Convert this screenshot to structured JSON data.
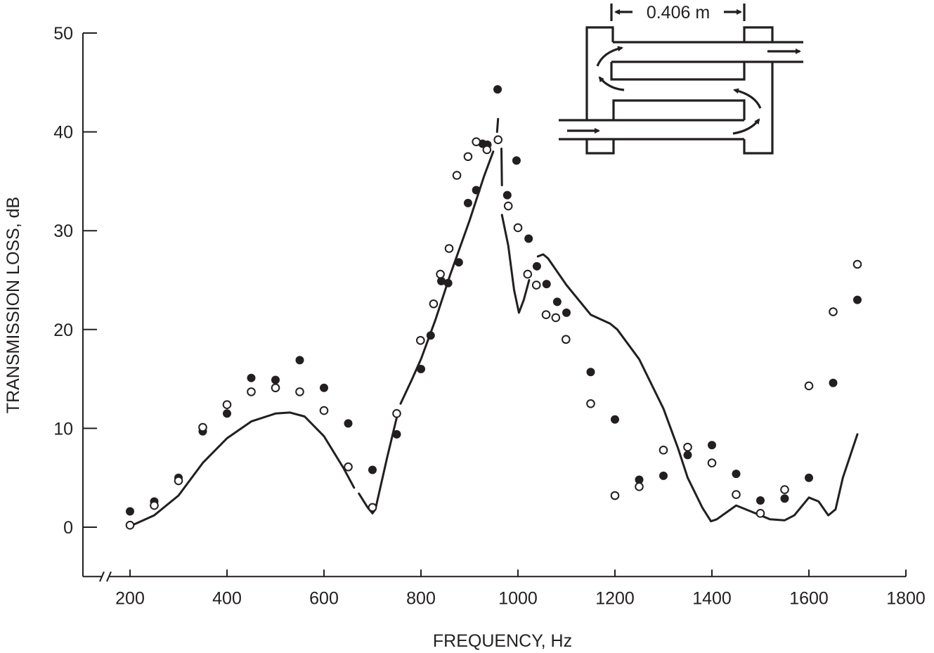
{
  "chart_data": {
    "type": "scatter",
    "title": "",
    "xlabel": "FREQUENCY, Hz",
    "ylabel": "TRANSMISSION LOSS, dB",
    "xlim": [
      200,
      1800
    ],
    "ylim": [
      -5,
      50
    ],
    "x_axis_break": true,
    "grid": false,
    "xticks": [
      200,
      400,
      600,
      800,
      1000,
      1200,
      1400,
      1600,
      1800
    ],
    "yticks": [
      0,
      10,
      20,
      30,
      40,
      50
    ],
    "series": [
      {
        "marker": "filled-circle",
        "color": "#231f20",
        "points": [
          [
            200,
            1.6
          ],
          [
            250,
            2.6
          ],
          [
            300,
            5.0
          ],
          [
            350,
            9.7
          ],
          [
            400,
            11.5
          ],
          [
            450,
            15.1
          ],
          [
            500,
            14.9
          ],
          [
            550,
            16.9
          ],
          [
            600,
            14.1
          ],
          [
            650,
            10.5
          ],
          [
            700,
            5.8
          ],
          [
            750,
            9.4
          ],
          [
            800,
            16.0
          ],
          [
            820,
            19.4
          ],
          [
            842,
            24.9
          ],
          [
            856,
            24.7
          ],
          [
            878,
            26.8
          ],
          [
            897,
            32.8
          ],
          [
            914,
            34.1
          ],
          [
            927,
            38.8
          ],
          [
            937,
            38.7
          ],
          [
            958,
            44.3
          ],
          [
            978,
            33.6
          ],
          [
            997,
            37.1
          ],
          [
            1022,
            29.2
          ],
          [
            1039,
            26.4
          ],
          [
            1059,
            24.6
          ],
          [
            1081,
            22.8
          ],
          [
            1100,
            21.7
          ],
          [
            1150,
            15.7
          ],
          [
            1200,
            10.9
          ],
          [
            1250,
            4.8
          ],
          [
            1300,
            5.2
          ],
          [
            1350,
            7.3
          ],
          [
            1400,
            8.3
          ],
          [
            1450,
            5.4
          ],
          [
            1500,
            2.7
          ],
          [
            1550,
            2.9
          ],
          [
            1600,
            5.0
          ],
          [
            1650,
            14.6
          ],
          [
            1700,
            23.0
          ]
        ]
      },
      {
        "marker": "open-circle",
        "color": "#231f20",
        "points": [
          [
            200,
            0.2
          ],
          [
            250,
            2.2
          ],
          [
            300,
            4.7
          ],
          [
            350,
            10.1
          ],
          [
            400,
            12.4
          ],
          [
            450,
            13.7
          ],
          [
            500,
            14.1
          ],
          [
            550,
            13.7
          ],
          [
            600,
            11.8
          ],
          [
            650,
            6.1
          ],
          [
            700,
            2.0
          ],
          [
            750,
            11.5
          ],
          [
            799,
            18.9
          ],
          [
            826,
            22.6
          ],
          [
            840,
            25.6
          ],
          [
            858,
            28.2
          ],
          [
            874,
            35.6
          ],
          [
            897,
            37.5
          ],
          [
            914,
            39.0
          ],
          [
            936,
            38.2
          ],
          [
            959,
            39.2
          ],
          [
            980,
            32.5
          ],
          [
            1000,
            30.3
          ],
          [
            1020,
            25.6
          ],
          [
            1038,
            24.5
          ],
          [
            1058,
            21.5
          ],
          [
            1078,
            21.2
          ],
          [
            1099,
            19.0
          ],
          [
            1150,
            12.5
          ],
          [
            1200,
            3.2
          ],
          [
            1250,
            4.1
          ],
          [
            1300,
            7.8
          ],
          [
            1350,
            8.1
          ],
          [
            1400,
            6.5
          ],
          [
            1450,
            3.3
          ],
          [
            1500,
            1.4
          ],
          [
            1550,
            3.8
          ],
          [
            1600,
            14.3
          ],
          [
            1650,
            21.8
          ],
          [
            1700,
            26.6
          ]
        ]
      },
      {
        "marker": "line",
        "color": "#231f20",
        "segments": [
          [
            [
              200,
              0.1
            ],
            [
              250,
              1.2
            ],
            [
              300,
              3.2
            ],
            [
              350,
              6.5
            ],
            [
              400,
              9.0
            ],
            [
              450,
              10.7
            ],
            [
              500,
              11.5
            ],
            [
              530,
              11.6
            ],
            [
              560,
              11.2
            ],
            [
              600,
              9.2
            ],
            [
              640,
              6.0
            ],
            [
              662,
              4.0
            ]
          ],
          [
            [
              672,
              3.4
            ],
            [
              690,
              2.0
            ],
            [
              700,
              1.4
            ],
            [
              706,
              1.8
            ],
            [
              730,
              7.0
            ],
            [
              752,
              11.5
            ]
          ],
          [
            [
              758,
              12.5
            ],
            [
              780,
              14.8
            ],
            [
              800,
              17.0
            ],
            [
              830,
              21.0
            ],
            [
              860,
              25.5
            ],
            [
              900,
              31.0
            ],
            [
              930,
              35.5
            ],
            [
              949,
              38.0
            ]
          ],
          [
            [
              957,
              40.0
            ],
            [
              959,
              41.3
            ]
          ],
          [
            [
              966,
              38.3
            ],
            [
              967,
              34.6
            ]
          ],
          [
            [
              967,
              31.6
            ],
            [
              980,
              28.5
            ],
            [
              992,
              24.0
            ],
            [
              1002,
              21.7
            ],
            [
              1012,
              23.0
            ],
            [
              1023,
              25.0
            ]
          ],
          [
            [
              1041,
              27.4
            ],
            [
              1052,
              27.6
            ],
            [
              1062,
              27.2
            ],
            [
              1100,
              24.5
            ],
            [
              1150,
              21.5
            ],
            [
              1190,
              20.6
            ],
            [
              1205,
              20.0
            ],
            [
              1250,
              17.0
            ],
            [
              1300,
              12.0
            ],
            [
              1330,
              8.0
            ],
            [
              1350,
              5.0
            ],
            [
              1380,
              2.0
            ],
            [
              1398,
              0.6
            ],
            [
              1410,
              0.8
            ],
            [
              1450,
              2.2
            ],
            [
              1480,
              1.6
            ],
            [
              1520,
              0.8
            ],
            [
              1550,
              0.7
            ],
            [
              1570,
              1.2
            ],
            [
              1600,
              3.0
            ],
            [
              1620,
              2.6
            ],
            [
              1640,
              1.2
            ],
            [
              1655,
              1.8
            ],
            [
              1670,
              5.0
            ],
            [
              1700,
              9.4
            ]
          ]
        ]
      }
    ],
    "inset": {
      "dimension_label": "0.406 m"
    }
  }
}
